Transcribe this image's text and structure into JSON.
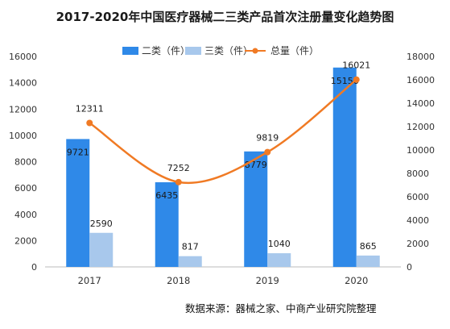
{
  "chart_data": {
    "type": "bar",
    "title": "2017-2020年中国医疗器械二三类产品首次注册量变化趋势图",
    "categories": [
      "2017",
      "2018",
      "2019",
      "2020"
    ],
    "series": [
      {
        "name": "二类（件）",
        "kind": "bar",
        "axis": "left",
        "color": "#2f89e8",
        "values": [
          9721,
          6435,
          8779,
          15156
        ]
      },
      {
        "name": "三类（件）",
        "kind": "bar",
        "axis": "left",
        "color": "#a8c8ec",
        "values": [
          2590,
          817,
          1040,
          865
        ]
      },
      {
        "name": "总量（件）",
        "kind": "line",
        "axis": "right",
        "color": "#f07a24",
        "values": [
          12311,
          7252,
          9819,
          16021
        ]
      }
    ],
    "y_left": {
      "range": [
        0,
        16000
      ],
      "ticks": [
        0,
        2000,
        4000,
        6000,
        8000,
        10000,
        12000,
        14000,
        16000
      ]
    },
    "y_right": {
      "range": [
        0,
        18000
      ],
      "ticks": [
        0,
        2000,
        4000,
        6000,
        8000,
        10000,
        12000,
        14000,
        16000,
        18000
      ]
    },
    "grid": false,
    "legend_position": "top",
    "source": "数据来源：器械之家、中商产业研究院整理"
  }
}
